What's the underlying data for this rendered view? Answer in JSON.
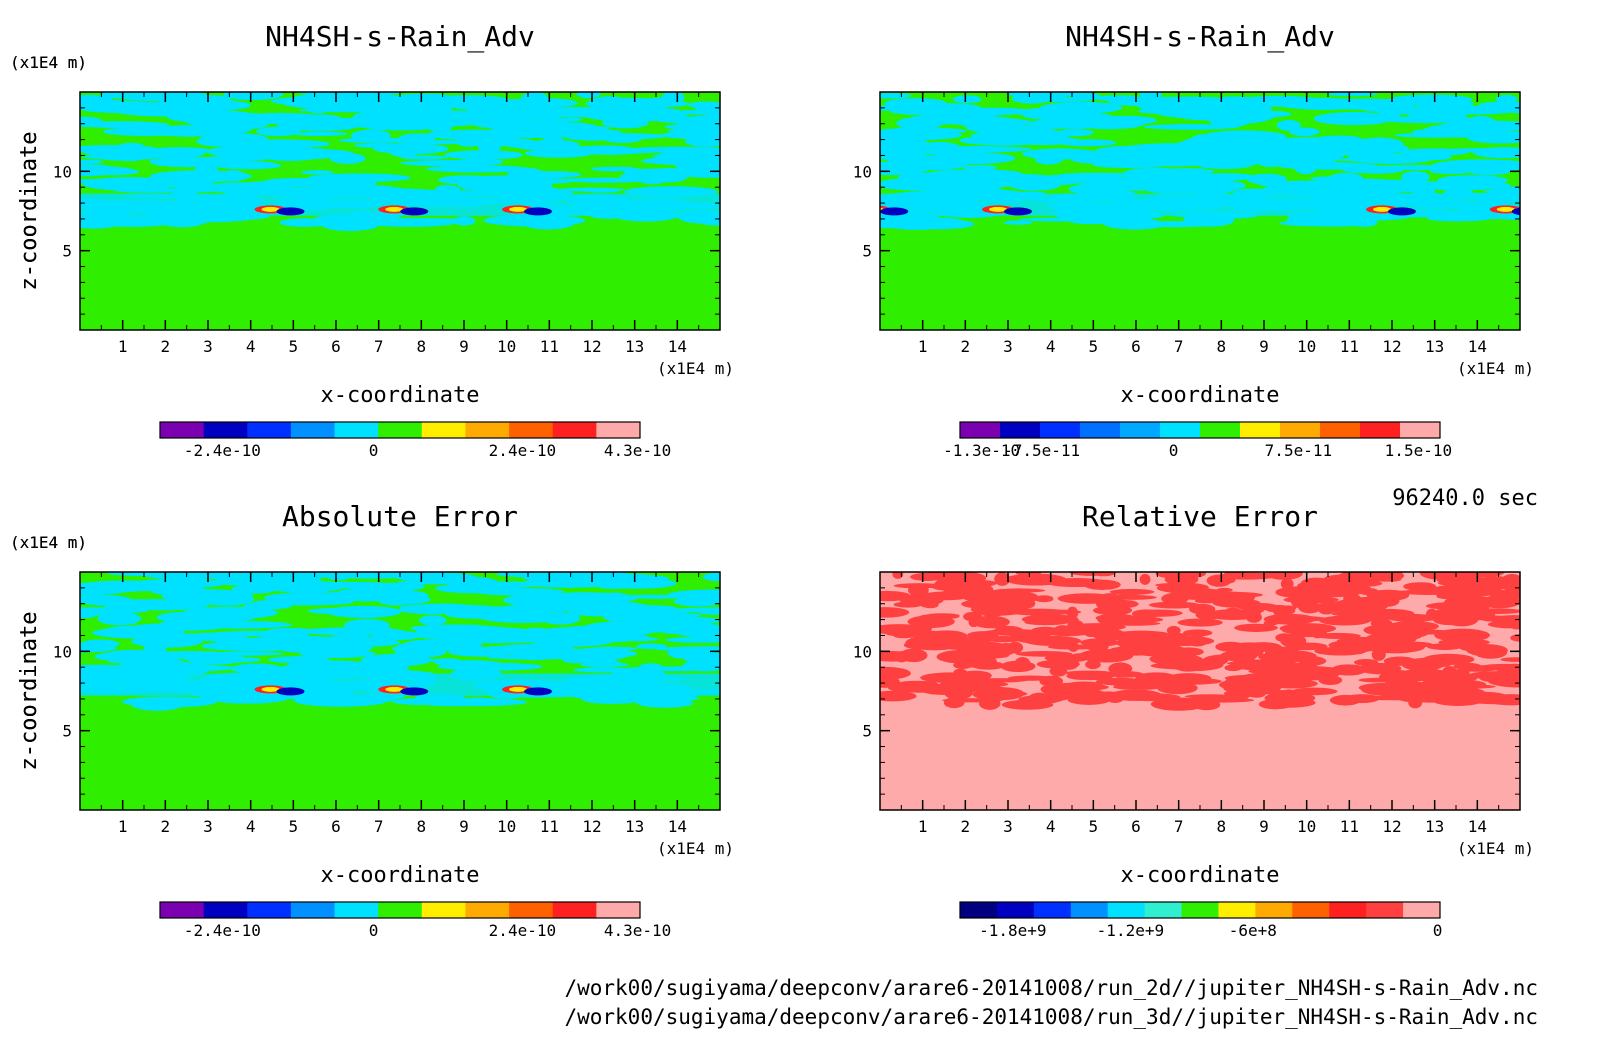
{
  "time_label": "96240.0 sec",
  "files": [
    "/work00/sugiyama/deepconv/arare6-20141008/run_2d//jupiter_NH4SH-s-Rain_Adv.nc",
    "/work00/sugiyama/deepconv/arare6-20141008/run_3d//jupiter_NH4SH-s-Rain_Adv.nc"
  ],
  "chart_data": [
    {
      "type": "heatmap",
      "title": "NH4SH-s-Rain_Adv",
      "xlabel": "x-coordinate",
      "ylabel": "z-coordinate",
      "x_unit": "(x1E4 m)",
      "y_unit": "(x1E4 m)",
      "xlim": [
        0,
        15
      ],
      "ylim": [
        0,
        15
      ],
      "xticks": [
        "1",
        "2",
        "3",
        "4",
        "5",
        "6",
        "7",
        "8",
        "9",
        "10",
        "11",
        "12",
        "13",
        "14"
      ],
      "yticks": [
        "5",
        "10"
      ],
      "colorbar": {
        "colors": [
          "#7a00b0",
          "#0000c0",
          "#0030ff",
          "#0090ff",
          "#00e0ff",
          "#30ee00",
          "#ffee00",
          "#ffaa00",
          "#ff6000",
          "#ff2020",
          "#ffaaaa"
        ],
        "tick_labels": [
          "-2.4e-10",
          "0",
          "2.4e-10",
          "4.3e-10"
        ]
      },
      "regions": [
        {
          "description": "upper layer (z ~ 6.5-15) alternating bands",
          "levels": [
            "#00e0ff",
            "#30ee00"
          ]
        },
        {
          "description": "lower layer (z < 6.5)",
          "level": "#30ee00"
        },
        {
          "description": "localized dipoles near z ~ 7.5",
          "x_centers": [
            4.7,
            7.6,
            10.5
          ]
        }
      ]
    },
    {
      "type": "heatmap",
      "title": "NH4SH-s-Rain_Adv",
      "xlabel": "x-coordinate",
      "ylabel": "z-coordinate",
      "x_unit": "(x1E4 m)",
      "y_unit": "(x1E4 m)",
      "xlim": [
        0,
        15
      ],
      "ylim": [
        0,
        15
      ],
      "xticks": [
        "1",
        "2",
        "3",
        "4",
        "5",
        "6",
        "7",
        "8",
        "9",
        "10",
        "11",
        "12",
        "13",
        "14"
      ],
      "yticks": [
        "5",
        "10"
      ],
      "colorbar": {
        "colors": [
          "#7a00b0",
          "#0000c0",
          "#0030ff",
          "#0070ff",
          "#00a8ff",
          "#00e0ff",
          "#30ee00",
          "#ffee00",
          "#ffaa00",
          "#ff6000",
          "#ff2020",
          "#ffaaaa"
        ],
        "tick_labels": [
          "-1.3e-10",
          "-7.5e-11",
          "0",
          "7.5e-11",
          "1.5e-10"
        ]
      },
      "regions": [
        {
          "description": "upper layer alternating bands",
          "levels": [
            "#00e0ff",
            "#30ee00"
          ]
        },
        {
          "description": "lower layer",
          "level": "#30ee00"
        },
        {
          "description": "localized features near z ~ 7.3",
          "x_centers": [
            0.1,
            3.0,
            12.0,
            14.9
          ]
        }
      ]
    },
    {
      "type": "heatmap",
      "title": "Absolute Error",
      "xlabel": "x-coordinate",
      "ylabel": "z-coordinate",
      "x_unit": "(x1E4 m)",
      "y_unit": "(x1E4 m)",
      "xlim": [
        0,
        15
      ],
      "ylim": [
        0,
        15
      ],
      "xticks": [
        "1",
        "2",
        "3",
        "4",
        "5",
        "6",
        "7",
        "8",
        "9",
        "10",
        "11",
        "12",
        "13",
        "14"
      ],
      "yticks": [
        "5",
        "10"
      ],
      "colorbar": {
        "colors": [
          "#7a00b0",
          "#0000c0",
          "#0030ff",
          "#0090ff",
          "#00e0ff",
          "#30ee00",
          "#ffee00",
          "#ffaa00",
          "#ff6000",
          "#ff2020",
          "#ffaaaa"
        ],
        "tick_labels": [
          "-2.4e-10",
          "0",
          "2.4e-10",
          "4.3e-10"
        ]
      },
      "regions": [
        {
          "description": "upper layer alternating bands",
          "levels": [
            "#00e0ff",
            "#30ee00"
          ]
        },
        {
          "description": "lower layer",
          "level": "#30ee00"
        },
        {
          "description": "localized dipoles near z ~ 7.5",
          "x_centers": [
            4.7,
            7.6,
            10.5
          ]
        }
      ]
    },
    {
      "type": "heatmap",
      "title": "Relative Error",
      "xlabel": "x-coordinate",
      "ylabel": "z-coordinate",
      "x_unit": "(x1E4 m)",
      "y_unit": "(x1E4 m)",
      "xlim": [
        0,
        15
      ],
      "ylim": [
        0,
        15
      ],
      "xticks": [
        "1",
        "2",
        "3",
        "4",
        "5",
        "6",
        "7",
        "8",
        "9",
        "10",
        "11",
        "12",
        "13",
        "14"
      ],
      "yticks": [
        "5",
        "10"
      ],
      "colorbar": {
        "colors": [
          "#000080",
          "#0000c0",
          "#0030ff",
          "#0090ff",
          "#00e0ff",
          "#30eed0",
          "#30ee00",
          "#ffee00",
          "#ffaa00",
          "#ff6000",
          "#ff2020",
          "#ff4040",
          "#ffaaaa"
        ],
        "tick_labels": [
          "-1.8e+9",
          "-1.2e+9",
          "-6e+8",
          "0"
        ]
      },
      "regions": [
        {
          "description": "background",
          "level": "#ffaaaa"
        },
        {
          "description": "red patches in upper layer (z ~ 6.5-15)",
          "level": "#ff4040"
        }
      ]
    }
  ]
}
